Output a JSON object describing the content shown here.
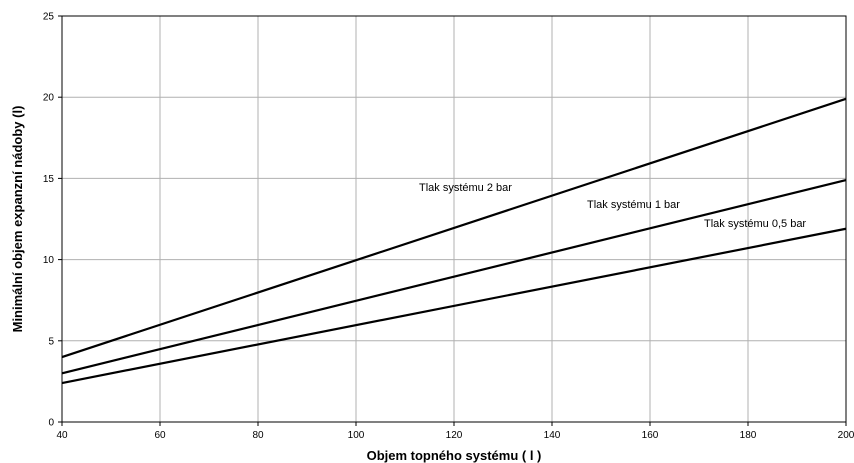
{
  "chart_data": {
    "type": "line",
    "title": "",
    "xlabel": "Objem topného systému ( l )",
    "ylabel": "Minimální objem expanzní nádoby (l)",
    "xlim": [
      40,
      200
    ],
    "ylim": [
      0,
      25
    ],
    "x_ticks": [
      "40",
      "60",
      "80",
      "100",
      "120",
      "140",
      "160",
      "180",
      "200"
    ],
    "y_ticks": [
      "0",
      "5",
      "10",
      "15",
      "20",
      "25"
    ],
    "grid": true,
    "legend": "none",
    "series": [
      {
        "name": "Tlak systému 2 bar",
        "x": [
          40,
          200
        ],
        "y": [
          4.0,
          19.9
        ]
      },
      {
        "name": "Tlak systému 1 bar",
        "x": [
          40,
          200
        ],
        "y": [
          3.0,
          14.9
        ]
      },
      {
        "name": "Tlak systému 0,5 bar",
        "x": [
          40,
          200
        ],
        "y": [
          2.4,
          11.9
        ]
      }
    ],
    "colors": {
      "line": "#000000",
      "grid": "#b0b0b0",
      "background": "#ffffff"
    }
  }
}
